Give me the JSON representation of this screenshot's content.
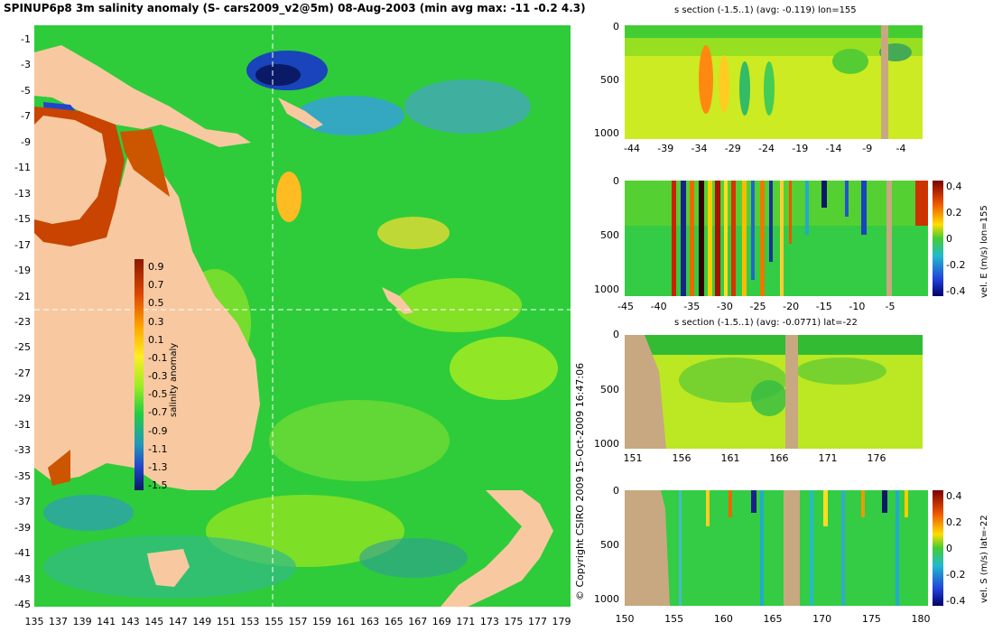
{
  "title": "SPINUP6p8 3m salinity anomaly (S- cars2009_v2@5m) 08-Aug-2003 (min avg max: -11 -0.2 4.3)",
  "copyright": "© Copyright CSIRO 2009   15-Oct-2009 16:47:06",
  "colors": {
    "land": "#f8c9a0",
    "sea_mid": "#22cc33",
    "section_land": "#c8a880"
  },
  "chart_data": [
    {
      "type": "heatmap",
      "name": "map",
      "x_ticks": [
        "135",
        "137",
        "139",
        "141",
        "143",
        "145",
        "147",
        "149",
        "151",
        "153",
        "155",
        "157",
        "159",
        "161",
        "163",
        "165",
        "167",
        "169",
        "171",
        "173",
        "175",
        "177",
        "179"
      ],
      "y_ticks": [
        "-1",
        "-3",
        "-5",
        "-7",
        "-9",
        "-11",
        "-13",
        "-15",
        "-17",
        "-19",
        "-21",
        "-23",
        "-25",
        "-27",
        "-29",
        "-31",
        "-33",
        "-35",
        "-37",
        "-39",
        "-41",
        "-43",
        "-45"
      ],
      "colorbar": {
        "label": "salinity anomaly",
        "ticks": [
          "0.9",
          "0.7",
          "0.5",
          "0.3",
          "0.1",
          "-0.1",
          "-0.3",
          "-0.5",
          "-0.7",
          "-0.9",
          "-1.1",
          "-1.3",
          "-1.5"
        ]
      },
      "crosshair": {
        "lon": 155,
        "lat": -22
      }
    },
    {
      "type": "heatmap",
      "name": "s-section-lon",
      "title": "s section (-1.5..1) (avg: -0.119) lon=155",
      "x_ticks": [
        "-44",
        "-39",
        "-34",
        "-29",
        "-24",
        "-19",
        "-14",
        "-9",
        "-4"
      ],
      "y_ticks": [
        "0",
        "500",
        "1000"
      ]
    },
    {
      "type": "heatmap",
      "name": "velE-section-lon",
      "title": "",
      "x_ticks": [
        "-45",
        "-40",
        "-35",
        "-30",
        "-25",
        "-20",
        "-15",
        "-10",
        "-5"
      ],
      "y_ticks": [
        "0",
        "500",
        "1000"
      ],
      "colorbar": {
        "label": "vel. E (m/s) lon=155",
        "ticks": [
          "0.4",
          "0.2",
          "0",
          "-0.2",
          "-0.4"
        ]
      }
    },
    {
      "type": "heatmap",
      "name": "s-section-lat",
      "title": "s section (-1.5..1) (avg: -0.0771) lat=-22",
      "x_ticks": [
        "151",
        "156",
        "161",
        "166",
        "171",
        "176"
      ],
      "y_ticks": [
        "0",
        "500",
        "1000"
      ]
    },
    {
      "type": "heatmap",
      "name": "velS-section-lat",
      "title": "",
      "x_ticks": [
        "150",
        "155",
        "160",
        "165",
        "170",
        "175",
        "180"
      ],
      "y_ticks": [
        "0",
        "500",
        "1000"
      ],
      "colorbar": {
        "label": "vel. S (m/s) lat=-22",
        "ticks": [
          "0.4",
          "0.2",
          "0",
          "-0.2",
          "-0.4"
        ]
      }
    }
  ]
}
